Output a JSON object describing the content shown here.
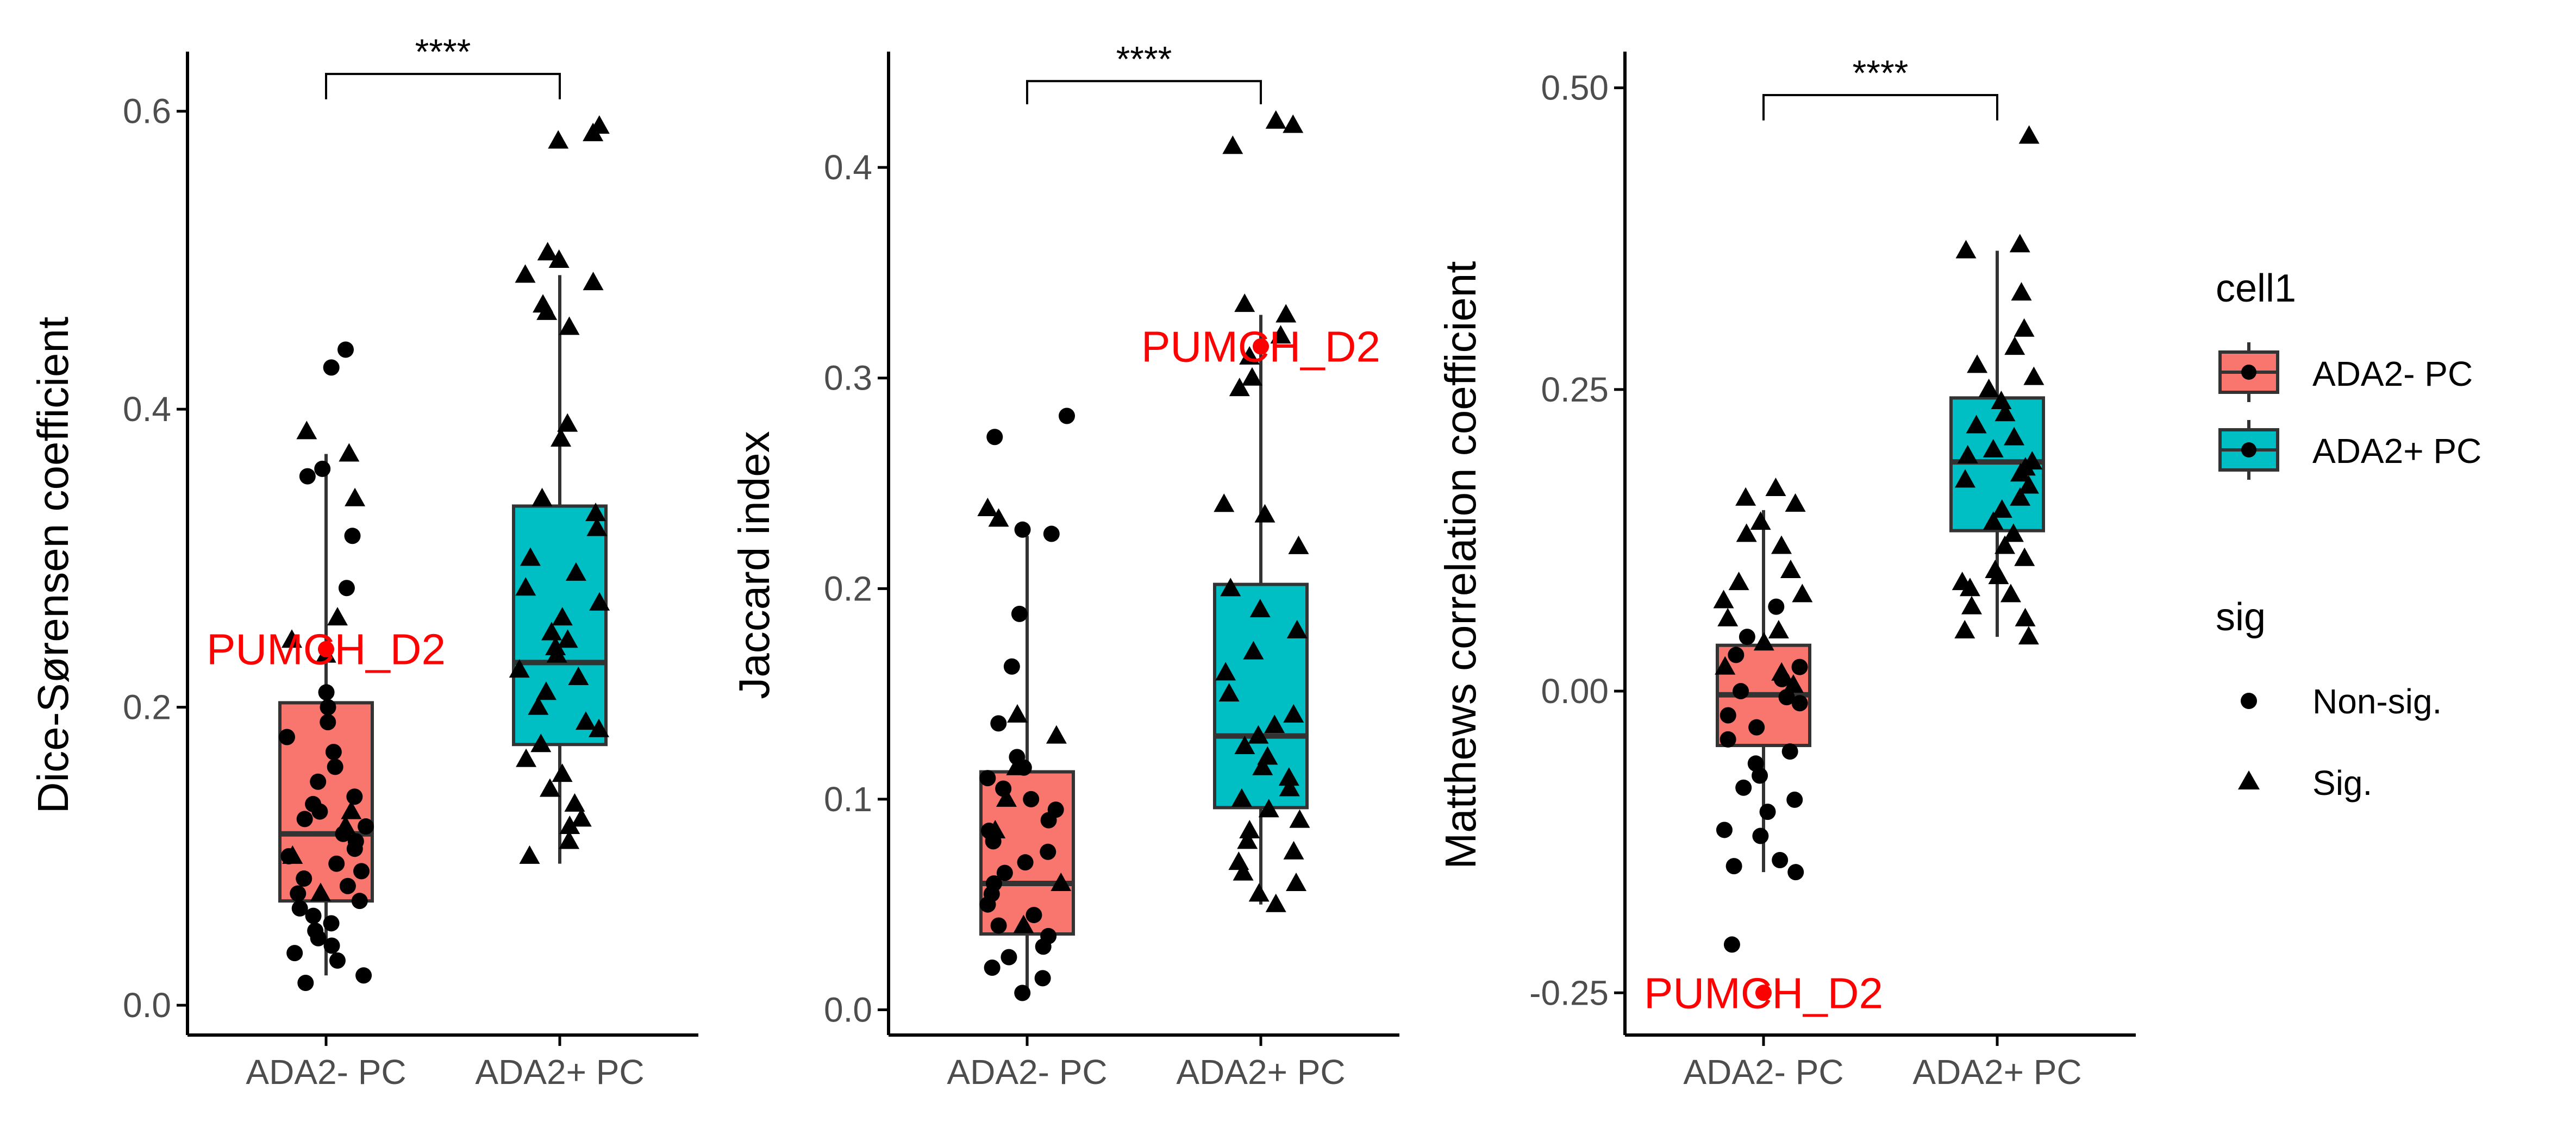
{
  "colors": {
    "ada2_minus": "#F8766D",
    "ada2_plus": "#00BFC4",
    "highlight": "#FF0000",
    "point": "#000000",
    "axis": "#000000",
    "tick_label": "#4D4D4D",
    "box_line": "#333333"
  },
  "legend": {
    "fill_title": "cell1",
    "fill_items": [
      "ADA2- PC",
      "ADA2+ PC"
    ],
    "shape_title": "sig",
    "shape_items": [
      "Non-sig.",
      "Sig."
    ]
  },
  "chart_data": [
    {
      "type": "box",
      "ylabel": "Dice-Sørensen coefficient",
      "categories": [
        "ADA2- PC",
        "ADA2+ PC"
      ],
      "ylim": [
        -0.02,
        0.64
      ],
      "yticks": [
        0.0,
        0.2,
        0.4,
        0.6
      ],
      "ytick_labels": [
        "0.0",
        "0.2",
        "0.4",
        "0.6"
      ],
      "significance": "****",
      "bracket_y": 0.625,
      "bracket_low": 0.608,
      "boxes": [
        {
          "category": "ADA2- PC",
          "q1": 0.07,
          "median": 0.115,
          "q3": 0.203,
          "whisker_low": 0.02,
          "whisker_high": 0.37
        },
        {
          "category": "ADA2+ PC",
          "q1": 0.175,
          "median": 0.23,
          "q3": 0.335,
          "whisker_low": 0.095,
          "whisker_high": 0.49
        }
      ],
      "points": [
        {
          "category": "ADA2- PC",
          "shape": "circle",
          "values": [
            0.44,
            0.428,
            0.36,
            0.355,
            0.315,
            0.28,
            0.21,
            0.2,
            0.19,
            0.18,
            0.17,
            0.16,
            0.15,
            0.14,
            0.135,
            0.13,
            0.125,
            0.12,
            0.115,
            0.11,
            0.105,
            0.1,
            0.095,
            0.09,
            0.085,
            0.08,
            0.075,
            0.07,
            0.065,
            0.06,
            0.055,
            0.05,
            0.045,
            0.04,
            0.035,
            0.03,
            0.02,
            0.015
          ]
        },
        {
          "category": "ADA2- PC",
          "shape": "triangle",
          "values": [
            0.385,
            0.37,
            0.34,
            0.26,
            0.245,
            0.235,
            0.13,
            0.12,
            0.1,
            0.075
          ]
        },
        {
          "category": "ADA2+ PC",
          "shape": "triangle",
          "values": [
            0.59,
            0.585,
            0.58,
            0.505,
            0.5,
            0.49,
            0.485,
            0.47,
            0.465,
            0.455,
            0.39,
            0.38,
            0.34,
            0.33,
            0.32,
            0.3,
            0.29,
            0.28,
            0.27,
            0.26,
            0.25,
            0.245,
            0.24,
            0.235,
            0.225,
            0.22,
            0.21,
            0.2,
            0.19,
            0.185,
            0.175,
            0.165,
            0.155,
            0.145,
            0.135,
            0.125,
            0.12,
            0.11,
            0.1
          ]
        }
      ],
      "highlight": {
        "label": "PUMCH_D2",
        "category": "ADA2- PC",
        "value": 0.239
      }
    },
    {
      "type": "box",
      "ylabel": "Jaccard index",
      "categories": [
        "ADA2- PC",
        "ADA2+ PC"
      ],
      "ylim": [
        -0.012,
        0.455
      ],
      "yticks": [
        0.0,
        0.1,
        0.2,
        0.3,
        0.4
      ],
      "ytick_labels": [
        "0.0",
        "0.1",
        "0.2",
        "0.3",
        "0.4"
      ],
      "significance": "****",
      "bracket_y": 0.441,
      "bracket_low": 0.43,
      "boxes": [
        {
          "category": "ADA2- PC",
          "q1": 0.036,
          "median": 0.06,
          "q3": 0.113,
          "whisker_low": 0.008,
          "whisker_high": 0.225
        },
        {
          "category": "ADA2+ PC",
          "q1": 0.096,
          "median": 0.13,
          "q3": 0.202,
          "whisker_low": 0.05,
          "whisker_high": 0.33
        }
      ],
      "points": [
        {
          "category": "ADA2- PC",
          "shape": "circle",
          "values": [
            0.282,
            0.272,
            0.228,
            0.226,
            0.188,
            0.163,
            0.136,
            0.12,
            0.115,
            0.11,
            0.105,
            0.1,
            0.095,
            0.09,
            0.085,
            0.08,
            0.075,
            0.07,
            0.065,
            0.06,
            0.055,
            0.05,
            0.045,
            0.04,
            0.035,
            0.03,
            0.025,
            0.02,
            0.015,
            0.008
          ]
        },
        {
          "category": "ADA2- PC",
          "shape": "triangle",
          "values": [
            0.238,
            0.233,
            0.14,
            0.13,
            0.115,
            0.1,
            0.085,
            0.06,
            0.04
          ]
        },
        {
          "category": "ADA2+ PC",
          "shape": "triangle",
          "values": [
            0.422,
            0.42,
            0.41,
            0.335,
            0.33,
            0.32,
            0.31,
            0.3,
            0.295,
            0.24,
            0.235,
            0.22,
            0.2,
            0.19,
            0.18,
            0.17,
            0.16,
            0.15,
            0.14,
            0.135,
            0.13,
            0.125,
            0.12,
            0.115,
            0.11,
            0.105,
            0.1,
            0.095,
            0.09,
            0.085,
            0.08,
            0.075,
            0.07,
            0.065,
            0.06,
            0.055,
            0.05
          ]
        }
      ],
      "highlight": {
        "label": "PUMCH_D2",
        "category": "ADA2+ PC",
        "value": 0.315
      }
    },
    {
      "type": "box",
      "ylabel": "Matthews correlation coefficient",
      "categories": [
        "ADA2- PC",
        "ADA2+ PC"
      ],
      "ylim": [
        -0.285,
        0.53
      ],
      "yticks": [
        -0.25,
        0.0,
        0.25,
        0.5
      ],
      "ytick_labels": [
        "-0.25",
        "0.00",
        "0.25",
        "0.50"
      ],
      "significance": "****",
      "bracket_y": 0.494,
      "bracket_low": 0.473,
      "boxes": [
        {
          "category": "ADA2- PC",
          "q1": -0.045,
          "median": -0.003,
          "q3": 0.038,
          "whisker_low": -0.15,
          "whisker_high": 0.15
        },
        {
          "category": "ADA2+ PC",
          "q1": 0.133,
          "median": 0.19,
          "q3": 0.243,
          "whisker_low": 0.045,
          "whisker_high": 0.365
        }
      ],
      "points": [
        {
          "category": "ADA2- PC",
          "shape": "circle",
          "values": [
            0.07,
            0.045,
            0.03,
            0.02,
            0.01,
            0.0,
            -0.005,
            -0.01,
            -0.02,
            -0.03,
            -0.04,
            -0.05,
            -0.06,
            -0.07,
            -0.08,
            -0.09,
            -0.1,
            -0.115,
            -0.12,
            -0.14,
            -0.145,
            -0.15,
            -0.21
          ]
        },
        {
          "category": "ADA2- PC",
          "shape": "triangle",
          "values": [
            0.168,
            0.16,
            0.155,
            0.14,
            0.13,
            0.12,
            0.1,
            0.09,
            0.08,
            0.075,
            0.06,
            0.05,
            0.04,
            0.02,
            0.015,
            0.005
          ]
        },
        {
          "category": "ADA2+ PC",
          "shape": "triangle",
          "values": [
            0.46,
            0.37,
            0.365,
            0.33,
            0.3,
            0.285,
            0.27,
            0.26,
            0.25,
            0.24,
            0.23,
            0.22,
            0.21,
            0.2,
            0.195,
            0.19,
            0.185,
            0.18,
            0.175,
            0.17,
            0.16,
            0.15,
            0.14,
            0.13,
            0.12,
            0.11,
            0.1,
            0.095,
            0.09,
            0.085,
            0.08,
            0.07,
            0.06,
            0.05,
            0.045
          ]
        }
      ],
      "highlight": {
        "label": "PUMCH_D2",
        "category": "ADA2- PC",
        "value": -0.25
      }
    }
  ]
}
